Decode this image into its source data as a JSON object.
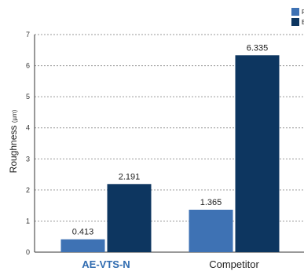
{
  "chart_data": {
    "type": "bar",
    "categories": [
      "AE-VTS-N",
      "Competitor"
    ],
    "category_colors": [
      "#2f6bb0",
      "#222222"
    ],
    "series": [
      {
        "name": "F",
        "color": "#3e72b4",
        "values": [
          0.413,
          1.365
        ]
      },
      {
        "name": "E",
        "color": "#0d3660",
        "values": [
          2.191,
          6.335
        ]
      }
    ],
    "ylabel": "Roughness",
    "ylabel_unit": "(µm)",
    "ylim": [
      0,
      7
    ],
    "yticks": [
      0,
      1,
      2,
      3,
      4,
      5,
      6,
      7
    ],
    "grid": true,
    "legend_position": "top-right"
  }
}
